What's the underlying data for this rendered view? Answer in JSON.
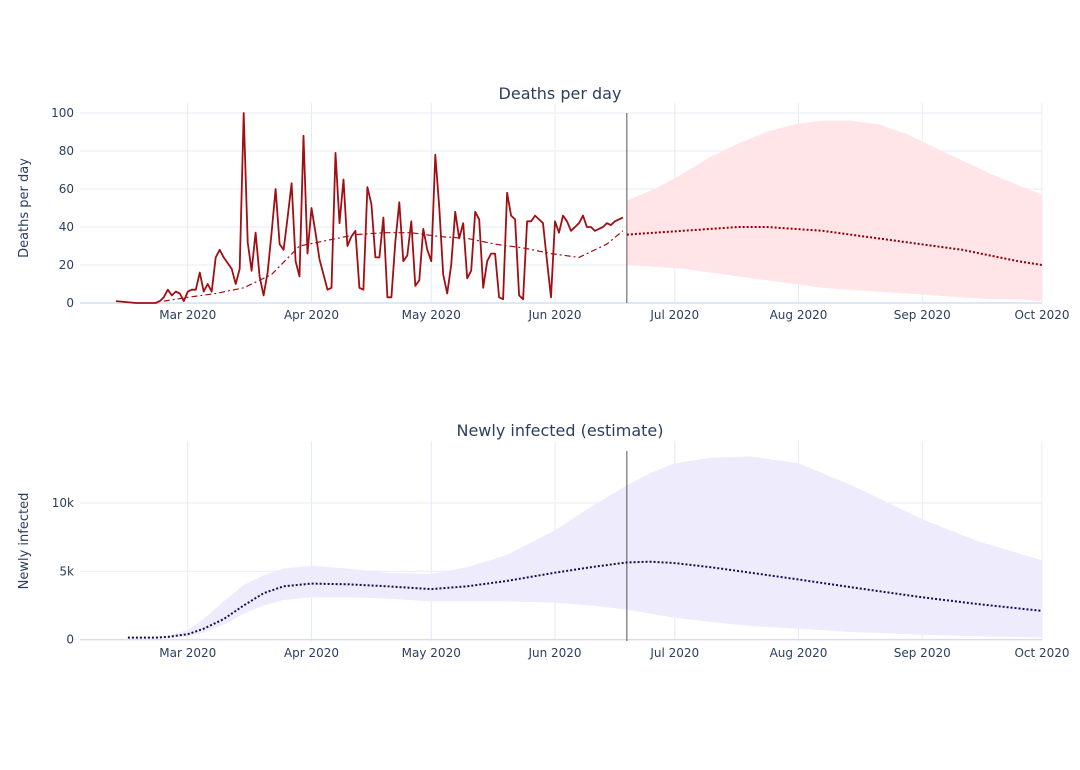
{
  "chart_data": [
    {
      "type": "line",
      "title": "Deaths per day",
      "ylabel": "Deaths per day",
      "xlabel": "",
      "xlim": [
        "2020-02-03",
        "2020-10-01"
      ],
      "ylim": [
        0,
        100
      ],
      "x_ticks": [
        "2020-03-01",
        "2020-04-01",
        "2020-05-01",
        "2020-06-01",
        "2020-07-01",
        "2020-08-01",
        "2020-09-01",
        "2020-10-01"
      ],
      "x_tick_labels": [
        "Mar 2020",
        "Apr 2020",
        "May 2020",
        "Jun 2020",
        "Jul 2020",
        "Aug 2020",
        "Sep 2020",
        "Oct 2020"
      ],
      "y_ticks": [
        0,
        20,
        40,
        60,
        80,
        100
      ],
      "y_tick_labels": [
        "0",
        "20",
        "40",
        "60",
        "80",
        "100"
      ],
      "grid": true,
      "legend": "none",
      "divider_date": "2020-06-19",
      "colors": {
        "observed": "#a00f14",
        "smoothed": "#a00f14",
        "forecast": "#8b0000",
        "band": "#ffe4e8"
      },
      "series": [
        {
          "role": "observed",
          "style": "solid",
          "x": [
            "2020-02-12",
            "2020-02-17",
            "2020-02-18",
            "2020-02-19",
            "2020-02-20",
            "2020-02-21",
            "2020-02-22",
            "2020-02-23",
            "2020-02-24",
            "2020-02-25",
            "2020-02-26",
            "2020-02-27",
            "2020-02-28",
            "2020-02-29",
            "2020-03-01",
            "2020-03-02",
            "2020-03-03",
            "2020-03-04",
            "2020-03-05",
            "2020-03-06",
            "2020-03-07",
            "2020-03-08",
            "2020-03-09",
            "2020-03-10",
            "2020-03-11",
            "2020-03-12",
            "2020-03-13",
            "2020-03-14",
            "2020-03-15",
            "2020-03-16",
            "2020-03-17",
            "2020-03-18",
            "2020-03-19",
            "2020-03-20",
            "2020-03-21",
            "2020-03-22",
            "2020-03-23",
            "2020-03-24",
            "2020-03-25",
            "2020-03-26",
            "2020-03-27",
            "2020-03-28",
            "2020-03-29",
            "2020-03-30",
            "2020-03-31",
            "2020-04-01",
            "2020-04-02",
            "2020-04-03",
            "2020-04-04",
            "2020-04-05",
            "2020-04-06",
            "2020-04-07",
            "2020-04-08",
            "2020-04-09",
            "2020-04-10",
            "2020-04-11",
            "2020-04-12",
            "2020-04-13",
            "2020-04-14",
            "2020-04-15",
            "2020-04-16",
            "2020-04-17",
            "2020-04-18",
            "2020-04-19",
            "2020-04-20",
            "2020-04-21",
            "2020-04-22",
            "2020-04-23",
            "2020-04-24",
            "2020-04-25",
            "2020-04-26",
            "2020-04-27",
            "2020-04-28",
            "2020-04-29",
            "2020-04-30",
            "2020-05-01",
            "2020-05-02",
            "2020-05-03",
            "2020-05-04",
            "2020-05-05",
            "2020-05-06",
            "2020-05-07",
            "2020-05-08",
            "2020-05-09",
            "2020-05-10",
            "2020-05-11",
            "2020-05-12",
            "2020-05-13",
            "2020-05-14",
            "2020-05-15",
            "2020-05-16",
            "2020-05-17",
            "2020-05-18",
            "2020-05-19",
            "2020-05-20",
            "2020-05-21",
            "2020-05-22",
            "2020-05-23",
            "2020-05-24",
            "2020-05-25",
            "2020-05-26",
            "2020-05-27",
            "2020-05-28",
            "2020-05-29",
            "2020-05-30",
            "2020-05-31",
            "2020-06-01",
            "2020-06-02",
            "2020-06-03",
            "2020-06-04",
            "2020-06-05",
            "2020-06-06",
            "2020-06-07",
            "2020-06-08",
            "2020-06-09",
            "2020-06-10",
            "2020-06-11",
            "2020-06-12",
            "2020-06-13",
            "2020-06-14",
            "2020-06-15",
            "2020-06-16",
            "2020-06-17",
            "2020-06-18"
          ],
          "y": [
            1,
            0,
            0,
            0,
            0,
            0,
            0,
            1,
            3,
            7,
            4,
            6,
            5,
            1,
            6,
            7,
            7,
            16,
            6,
            10,
            6,
            24,
            28,
            24,
            21,
            18,
            10,
            18,
            100,
            32,
            17,
            37,
            14,
            4,
            16,
            37,
            60,
            31,
            28,
            45,
            63,
            22,
            14,
            88,
            26,
            50,
            37,
            23,
            15,
            7,
            8,
            79,
            42,
            65,
            30,
            35,
            38,
            8,
            7,
            61,
            52,
            24,
            24,
            45,
            3,
            3,
            32,
            53,
            22,
            25,
            43,
            9,
            12,
            39,
            28,
            22,
            78,
            50,
            15,
            5,
            20,
            48,
            34,
            42,
            13,
            17,
            48,
            44,
            8,
            22,
            26,
            26,
            3,
            2,
            58,
            46,
            44,
            4,
            2,
            43,
            43,
            46,
            44,
            42,
            22,
            3,
            43,
            37,
            46,
            43,
            38,
            40,
            42,
            46,
            40,
            40,
            38,
            39,
            40,
            42,
            41,
            43,
            44,
            45
          ]
        },
        {
          "role": "smoothed",
          "style": "dashdot",
          "x": [
            "2020-02-24",
            "2020-03-01",
            "2020-03-08",
            "2020-03-15",
            "2020-03-22",
            "2020-03-29",
            "2020-04-05",
            "2020-04-12",
            "2020-04-19",
            "2020-04-26",
            "2020-05-03",
            "2020-05-10",
            "2020-05-17",
            "2020-05-24",
            "2020-05-31",
            "2020-06-07",
            "2020-06-14",
            "2020-06-18"
          ],
          "y": [
            1,
            3,
            5,
            8,
            15,
            30,
            33,
            36,
            37,
            37,
            35,
            34,
            31,
            29,
            26,
            24,
            31,
            38
          ]
        },
        {
          "role": "forecast",
          "style": "dot",
          "x": [
            "2020-06-19",
            "2020-06-26",
            "2020-07-03",
            "2020-07-10",
            "2020-07-17",
            "2020-07-24",
            "2020-07-31",
            "2020-08-07",
            "2020-08-14",
            "2020-08-21",
            "2020-08-28",
            "2020-09-04",
            "2020-09-11",
            "2020-09-18",
            "2020-09-25",
            "2020-10-01"
          ],
          "y": [
            36,
            37,
            38,
            39,
            40,
            40,
            39,
            38,
            36,
            34,
            32,
            30,
            28,
            25,
            22,
            20
          ]
        }
      ],
      "band": {
        "x": [
          "2020-06-19",
          "2020-06-26",
          "2020-07-03",
          "2020-07-10",
          "2020-07-17",
          "2020-07-24",
          "2020-07-31",
          "2020-08-07",
          "2020-08-14",
          "2020-08-21",
          "2020-08-28",
          "2020-09-04",
          "2020-09-11",
          "2020-09-18",
          "2020-09-25",
          "2020-10-01"
        ],
        "upper": [
          54,
          60,
          68,
          77,
          84,
          90,
          94,
          96,
          96,
          94,
          89,
          82,
          75,
          68,
          62,
          57
        ],
        "lower": [
          20,
          19,
          18,
          16,
          14,
          12,
          10,
          8,
          7,
          6,
          5,
          4,
          3,
          2,
          2,
          1
        ]
      }
    },
    {
      "type": "line",
      "title": "Newly infected (estimate)",
      "ylabel": "Newly infected",
      "xlabel": "",
      "xlim": [
        "2020-02-03",
        "2020-10-01"
      ],
      "ylim": [
        -100,
        13800
      ],
      "x_ticks": [
        "2020-03-01",
        "2020-04-01",
        "2020-05-01",
        "2020-06-01",
        "2020-07-01",
        "2020-08-01",
        "2020-09-01",
        "2020-10-01"
      ],
      "x_tick_labels": [
        "Mar 2020",
        "Apr 2020",
        "May 2020",
        "Jun 2020",
        "Jul 2020",
        "Aug 2020",
        "Sep 2020",
        "Oct 2020"
      ],
      "y_ticks": [
        0,
        5000,
        10000
      ],
      "y_tick_labels": [
        "0",
        "5k",
        "10k"
      ],
      "grid": true,
      "legend": "none",
      "divider_date": "2020-06-19",
      "colors": {
        "estimate": "#1a0a4f",
        "band": "#eeebfc"
      },
      "series": [
        {
          "role": "estimate",
          "style": "dot",
          "x": [
            "2020-02-15",
            "2020-02-22",
            "2020-02-25",
            "2020-03-01",
            "2020-03-05",
            "2020-03-10",
            "2020-03-15",
            "2020-03-20",
            "2020-03-25",
            "2020-04-01",
            "2020-04-10",
            "2020-04-20",
            "2020-05-01",
            "2020-05-10",
            "2020-05-20",
            "2020-06-01",
            "2020-06-10",
            "2020-06-19",
            "2020-06-25",
            "2020-07-01",
            "2020-07-10",
            "2020-07-20",
            "2020-08-01",
            "2020-08-15",
            "2020-09-01",
            "2020-09-15",
            "2020-10-01"
          ],
          "y": [
            150,
            150,
            200,
            400,
            800,
            1500,
            2500,
            3400,
            3900,
            4100,
            4050,
            3900,
            3700,
            3900,
            4300,
            4900,
            5300,
            5650,
            5700,
            5600,
            5300,
            4900,
            4400,
            3800,
            3100,
            2600,
            2100
          ]
        }
      ],
      "band": {
        "x": [
          "2020-02-25",
          "2020-03-01",
          "2020-03-05",
          "2020-03-10",
          "2020-03-15",
          "2020-03-20",
          "2020-03-25",
          "2020-04-01",
          "2020-04-10",
          "2020-04-20",
          "2020-05-01",
          "2020-05-10",
          "2020-05-20",
          "2020-06-01",
          "2020-06-10",
          "2020-06-19",
          "2020-06-25",
          "2020-07-01",
          "2020-07-10",
          "2020-07-20",
          "2020-08-01",
          "2020-08-15",
          "2020-09-01",
          "2020-09-15",
          "2020-10-01"
        ],
        "upper": [
          300,
          700,
          1500,
          2800,
          4000,
          4700,
          5200,
          5400,
          5200,
          4900,
          4800,
          5300,
          6200,
          8000,
          9700,
          11300,
          12200,
          12900,
          13300,
          13400,
          12900,
          11200,
          8800,
          7200,
          5800
        ],
        "lower": [
          100,
          250,
          500,
          1100,
          1900,
          2500,
          2900,
          3100,
          3100,
          3000,
          2800,
          2800,
          2800,
          2700,
          2500,
          2200,
          1900,
          1600,
          1300,
          1000,
          800,
          550,
          350,
          250,
          150
        ]
      }
    }
  ]
}
